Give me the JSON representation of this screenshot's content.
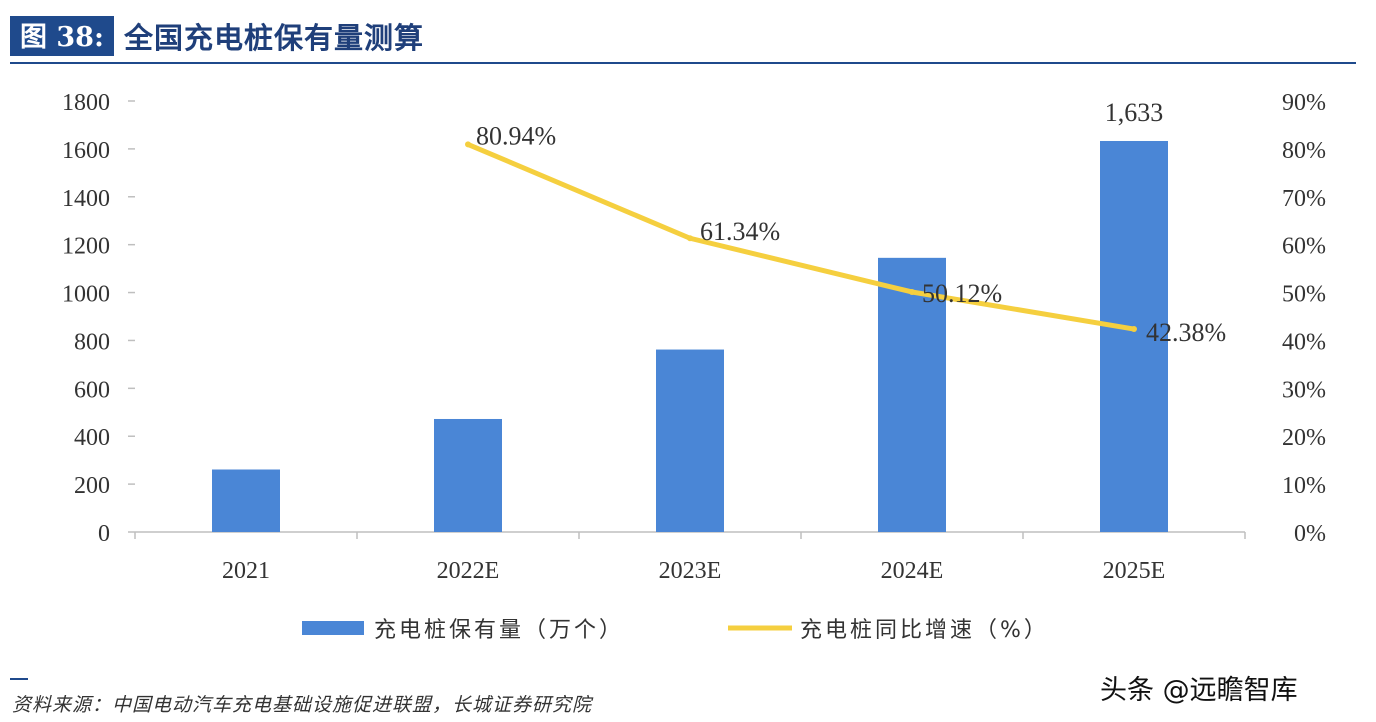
{
  "header": {
    "figure_number": "图 38:",
    "title": "全国充电桩保有量测算"
  },
  "source": "资料来源：中国电动汽车充电基础设施促进联盟，长城证券研究院",
  "watermark": "头条 @远瞻智库",
  "colors": {
    "bar": "#4a86d6",
    "line": "#f5cf3f",
    "header": "#1f4a8c"
  },
  "chart_data": {
    "type": "bar+line",
    "title": "全国充电桩保有量测算",
    "categories": [
      "2021",
      "2022E",
      "2023E",
      "2024E",
      "2025E"
    ],
    "series": [
      {
        "name": "充电桩保有量（万个）",
        "type": "bar",
        "axis": "left",
        "values": [
          261,
          472,
          762,
          1145,
          1633
        ],
        "data_labels": [
          null,
          null,
          null,
          null,
          "1,633"
        ]
      },
      {
        "name": "充电桩同比增速（%）",
        "type": "line",
        "axis": "right",
        "values": [
          null,
          80.94,
          61.34,
          50.12,
          42.38
        ],
        "data_labels": [
          null,
          "80.94%",
          "61.34%",
          "50.12%",
          "42.38%"
        ]
      }
    ],
    "y_left": {
      "min": 0,
      "max": 1800,
      "step": 200,
      "tick_labels": [
        "0",
        "200",
        "400",
        "600",
        "800",
        "1000",
        "1200",
        "1400",
        "1600",
        "1800"
      ]
    },
    "y_right": {
      "min": 0,
      "max": 90,
      "step": 10,
      "tick_labels": [
        "0%",
        "10%",
        "20%",
        "30%",
        "40%",
        "50%",
        "60%",
        "70%",
        "80%",
        "90%"
      ]
    },
    "grid": false,
    "legend": "bottom"
  }
}
